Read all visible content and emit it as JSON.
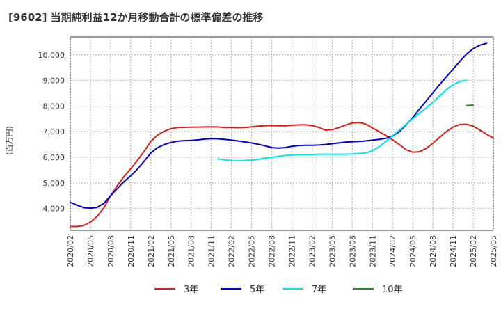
{
  "chart_data": {
    "type": "line",
    "title": "[9602]  当期純利益12か月移動合計の標準偏差の推移",
    "ylabel": "(百万円)",
    "xlabel": "",
    "ylim": [
      3150,
      10700
    ],
    "y_ticks": [
      4000,
      5000,
      6000,
      7000,
      8000,
      9000,
      10000
    ],
    "y_tick_labels": [
      "4,000",
      "5,000",
      "6,000",
      "7,000",
      "8,000",
      "9,000",
      "10,000"
    ],
    "x_range": [
      "2020-02",
      "2025-05"
    ],
    "x_ticks": [
      "2020/02",
      "2020/05",
      "2020/08",
      "2020/11",
      "2021/02",
      "2021/05",
      "2021/08",
      "2021/11",
      "2022/02",
      "2022/05",
      "2022/08",
      "2022/11",
      "2023/02",
      "2023/05",
      "2023/08",
      "2023/11",
      "2024/02",
      "2024/05",
      "2024/08",
      "2024/11",
      "2025/02",
      "2025/05"
    ],
    "grid": true,
    "legend_position": "bottom",
    "series": [
      {
        "name": "3年",
        "color": "#dd1c1c",
        "start": "2020-02",
        "values": [
          3300,
          3300,
          3340,
          3470,
          3700,
          4030,
          4500,
          4900,
          5250,
          5560,
          5880,
          6240,
          6620,
          6870,
          7020,
          7120,
          7160,
          7170,
          7175,
          7180,
          7185,
          7190,
          7185,
          7165,
          7160,
          7155,
          7165,
          7190,
          7215,
          7235,
          7240,
          7230,
          7230,
          7250,
          7265,
          7270,
          7240,
          7170,
          7060,
          7080,
          7160,
          7260,
          7340,
          7360,
          7300,
          7150,
          7000,
          6850,
          6680,
          6500,
          6300,
          6200,
          6220,
          6350,
          6550,
          6780,
          7000,
          7180,
          7280,
          7290,
          7220,
          7060,
          6900,
          6750
        ]
      },
      {
        "name": "5年",
        "color": "#0000cc",
        "start": "2020-02",
        "values": [
          4250,
          4130,
          4040,
          4010,
          4050,
          4200,
          4500,
          4780,
          5050,
          5280,
          5540,
          5850,
          6170,
          6380,
          6500,
          6580,
          6630,
          6650,
          6660,
          6680,
          6710,
          6730,
          6720,
          6700,
          6670,
          6640,
          6600,
          6560,
          6510,
          6450,
          6380,
          6360,
          6380,
          6430,
          6460,
          6470,
          6470,
          6480,
          6500,
          6530,
          6560,
          6590,
          6610,
          6620,
          6640,
          6670,
          6700,
          6740,
          6830,
          7000,
          7270,
          7550,
          7880,
          8200,
          8520,
          8840,
          9140,
          9440,
          9740,
          10030,
          10240,
          10380,
          10450
        ]
      },
      {
        "name": "7年",
        "color": "#00e5ee",
        "start": "2021-12",
        "values": [
          5940,
          5900,
          5870,
          5860,
          5870,
          5890,
          5920,
          5960,
          6000,
          6040,
          6070,
          6090,
          6100,
          6100,
          6110,
          6120,
          6120,
          6120,
          6120,
          6120,
          6130,
          6150,
          6170,
          6260,
          6420,
          6620,
          6840,
          7060,
          7290,
          7510,
          7720,
          7930,
          8150,
          8400,
          8640,
          8840,
          8960,
          9010
        ]
      },
      {
        "name": "10年",
        "color": "#228b22",
        "start": "2025-01",
        "values": [
          8020,
          8040
        ]
      }
    ]
  }
}
